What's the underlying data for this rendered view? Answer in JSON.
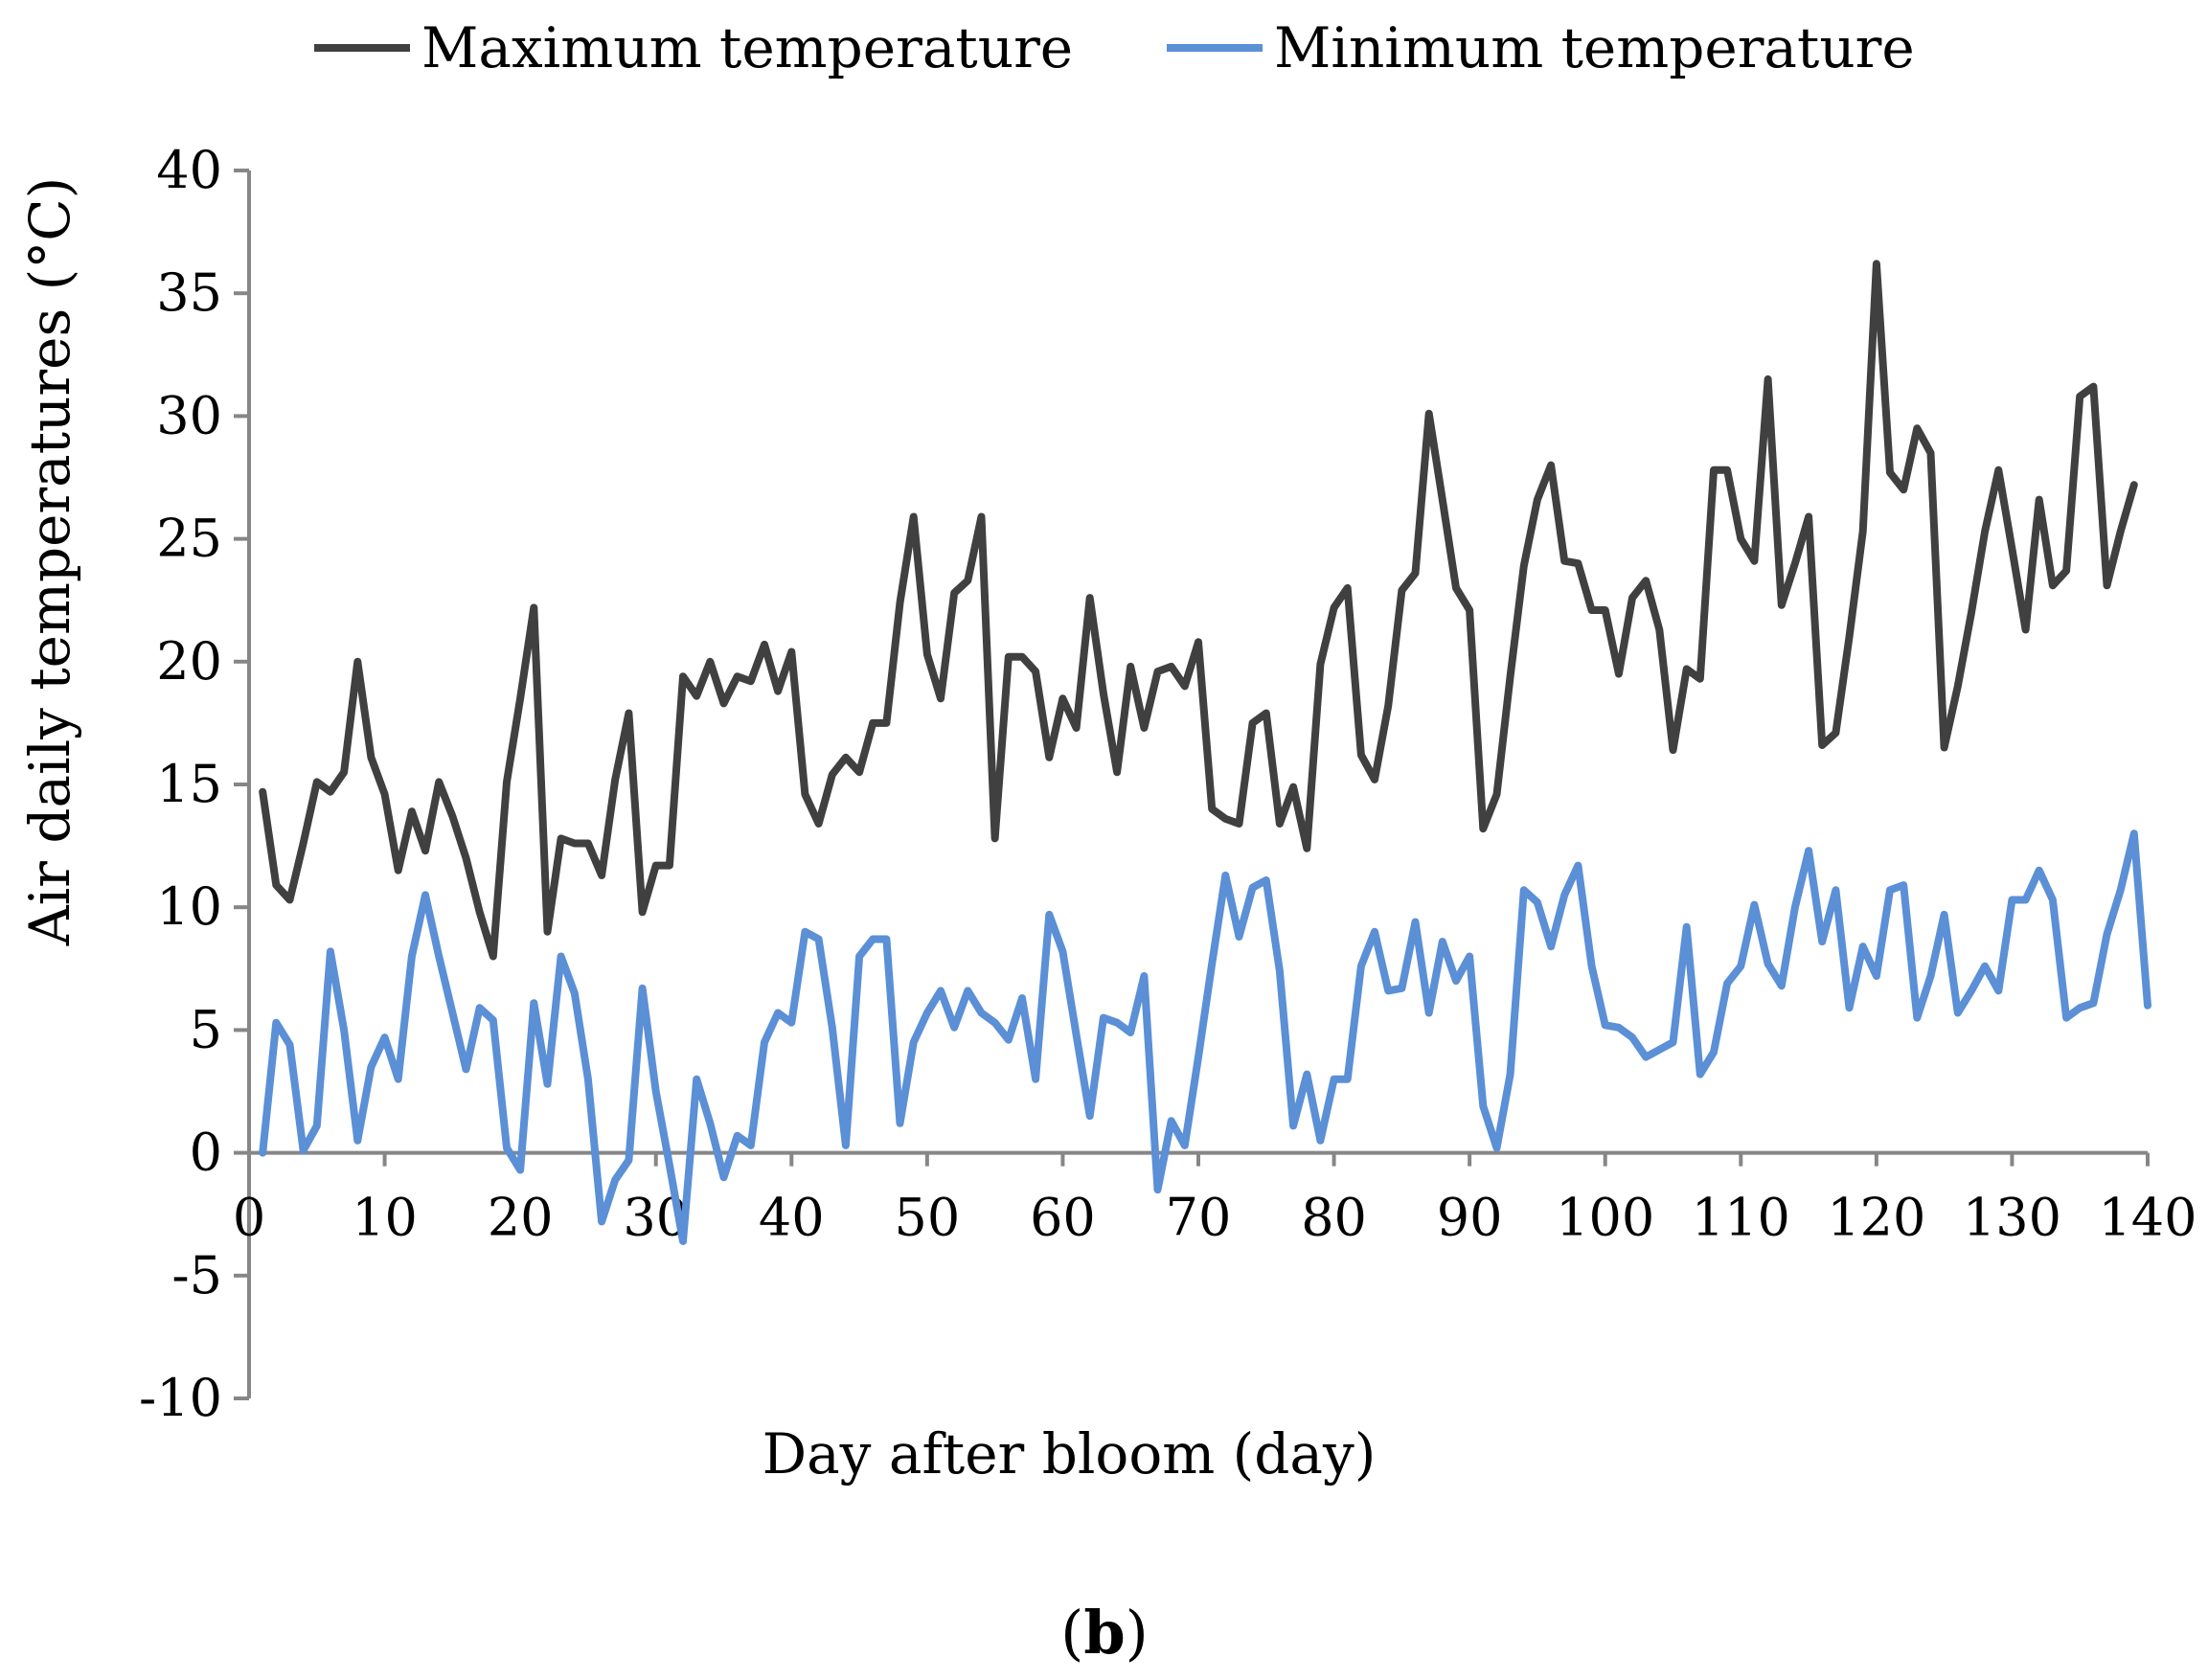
{
  "chart_data": {
    "type": "line",
    "title": "",
    "xlabel": "Day after bloom (day)",
    "ylabel": "Air daily temperatures (°C)",
    "xlim": [
      0,
      140
    ],
    "ylim": [
      -10,
      40
    ],
    "x_ticks": [
      "0",
      "10",
      "20",
      "30",
      "40",
      "50",
      "60",
      "70",
      "80",
      "90",
      "100",
      "110",
      "120",
      "130",
      "140"
    ],
    "y_ticks": [
      "40",
      "35",
      "30",
      "25",
      "20",
      "15",
      "10",
      "5",
      "0",
      "-5",
      "-10"
    ],
    "x_tick_values": [
      0,
      10,
      20,
      30,
      40,
      50,
      60,
      70,
      80,
      90,
      100,
      110,
      120,
      130,
      140
    ],
    "y_tick_values": [
      40,
      35,
      30,
      25,
      20,
      15,
      10,
      5,
      0,
      -5,
      -10
    ],
    "grid": false,
    "legend_position": "top",
    "series": [
      {
        "name": "Maximum temperature",
        "color": "#404040",
        "x": [
          1,
          2,
          3,
          4,
          5,
          6,
          7,
          8,
          9,
          10,
          11,
          12,
          13,
          14,
          15,
          16,
          17,
          18,
          19,
          20,
          21,
          22,
          23,
          24,
          25,
          26,
          27,
          28,
          29,
          30,
          31,
          32,
          33,
          34,
          35,
          36,
          37,
          38,
          39,
          40,
          41,
          42,
          43,
          44,
          45,
          46,
          47,
          48,
          49,
          50,
          51,
          52,
          53,
          54,
          55,
          56,
          57,
          58,
          59,
          60,
          61,
          62,
          63,
          64,
          65,
          66,
          67,
          68,
          69,
          70,
          71,
          72,
          73,
          74,
          75,
          76,
          77,
          78,
          79,
          80,
          81,
          82,
          83,
          84,
          85,
          86,
          87,
          88,
          89,
          90,
          91,
          92,
          93,
          94,
          95,
          96,
          97,
          98,
          99,
          100,
          101,
          102,
          103,
          104,
          105,
          106,
          107,
          108,
          109,
          110,
          111,
          112,
          113,
          114,
          115,
          116,
          117,
          118,
          119,
          120,
          121,
          122,
          123,
          124,
          125,
          126,
          127,
          128,
          129,
          130,
          131,
          132,
          133,
          134,
          135,
          136,
          137,
          138,
          139
        ],
        "values": [
          14.7,
          10.9,
          10.3,
          12.6,
          15.1,
          14.7,
          15.5,
          20.0,
          16.1,
          14.6,
          11.5,
          13.9,
          12.3,
          15.1,
          13.7,
          12.0,
          9.8,
          8.0,
          15.1,
          18.5,
          22.2,
          9.0,
          12.8,
          12.6,
          12.6,
          11.3,
          15.2,
          17.9,
          9.8,
          11.7,
          11.7,
          19.4,
          18.6,
          20.0,
          18.3,
          19.4,
          19.2,
          20.7,
          18.8,
          20.4,
          14.6,
          13.4,
          15.4,
          16.1,
          15.5,
          17.5,
          17.5,
          22.4,
          25.9,
          20.3,
          18.5,
          22.8,
          23.3,
          25.9,
          12.8,
          20.2,
          20.2,
          19.6,
          16.1,
          18.5,
          17.3,
          22.6,
          18.7,
          15.5,
          19.8,
          17.3,
          19.6,
          19.8,
          19.0,
          20.8,
          14.0,
          13.6,
          13.4,
          17.5,
          17.9,
          13.4,
          14.9,
          12.4,
          19.9,
          22.2,
          23.0,
          16.2,
          15.2,
          18.2,
          22.9,
          23.6,
          30.1,
          26.6,
          23.0,
          22.1,
          13.2,
          14.6,
          19.4,
          23.9,
          26.6,
          28.0,
          24.1,
          24.0,
          22.1,
          22.1,
          19.5,
          22.6,
          23.3,
          21.3,
          16.4,
          19.7,
          19.3,
          27.8,
          27.8,
          25.0,
          24.1,
          31.5,
          22.3,
          24.0,
          25.9,
          16.6,
          17.1,
          21.0,
          25.3,
          36.2,
          27.7,
          27.0,
          29.5,
          28.5,
          16.5,
          19.0,
          22.0,
          25.3,
          27.8,
          24.6,
          21.3,
          26.6,
          23.1,
          23.7,
          30.8,
          31.2,
          23.1,
          25.3,
          27.2
        ]
      },
      {
        "name": "Minimum temperature",
        "color": "#5b8fd6",
        "x": [
          1,
          2,
          3,
          4,
          5,
          6,
          7,
          8,
          9,
          10,
          11,
          12,
          13,
          14,
          15,
          16,
          17,
          18,
          19,
          20,
          21,
          22,
          23,
          24,
          25,
          26,
          27,
          28,
          29,
          30,
          31,
          32,
          33,
          34,
          35,
          36,
          37,
          38,
          39,
          40,
          41,
          42,
          43,
          44,
          45,
          46,
          47,
          48,
          49,
          50,
          51,
          52,
          53,
          54,
          55,
          56,
          57,
          58,
          59,
          60,
          61,
          62,
          63,
          64,
          65,
          66,
          67,
          68,
          69,
          70,
          71,
          72,
          73,
          74,
          75,
          76,
          77,
          78,
          79,
          80,
          81,
          82,
          83,
          84,
          85,
          86,
          87,
          88,
          89,
          90,
          91,
          92,
          93,
          94,
          95,
          96,
          97,
          98,
          99,
          100,
          101,
          102,
          103,
          104,
          105,
          106,
          107,
          108,
          109,
          110,
          111,
          112,
          113,
          114,
          115,
          116,
          117,
          118,
          119,
          120,
          121,
          122,
          123,
          124,
          125,
          126,
          127,
          128,
          129,
          130,
          131,
          132,
          133,
          134,
          135,
          136,
          137,
          138,
          139,
          140
        ],
        "values": [
          0.0,
          5.3,
          4.4,
          0.1,
          1.1,
          8.2,
          5.0,
          0.5,
          3.5,
          4.7,
          3.0,
          8.0,
          10.5,
          8.0,
          5.7,
          3.4,
          5.9,
          5.4,
          0.2,
          -0.7,
          6.1,
          2.8,
          8.0,
          6.5,
          3.0,
          -2.8,
          -1.1,
          -0.3,
          6.7,
          2.5,
          -0.5,
          -3.6,
          3.0,
          1.2,
          -1.0,
          0.7,
          0.3,
          4.5,
          5.7,
          5.3,
          9.0,
          8.7,
          5.1,
          0.3,
          8.0,
          8.7,
          8.7,
          1.2,
          4.5,
          5.7,
          6.6,
          5.1,
          6.6,
          5.7,
          5.3,
          4.6,
          6.3,
          3.0,
          9.7,
          8.2,
          4.8,
          1.5,
          5.5,
          5.3,
          4.9,
          7.2,
          -1.5,
          1.3,
          0.3,
          3.9,
          7.7,
          11.3,
          8.8,
          10.8,
          11.1,
          7.4,
          1.1,
          3.2,
          0.5,
          3.0,
          3.0,
          7.6,
          9.0,
          6.6,
          6.7,
          9.4,
          5.7,
          8.6,
          7.0,
          8.0,
          1.9,
          0.2,
          3.2,
          10.7,
          10.2,
          8.4,
          10.5,
          11.7,
          7.6,
          5.2,
          5.1,
          4.7,
          3.9,
          4.2,
          4.5,
          9.2,
          3.2,
          4.1,
          6.9,
          7.6,
          10.1,
          7.7,
          6.8,
          10.0,
          12.3,
          8.6,
          10.7,
          5.9,
          8.4,
          7.2,
          10.7,
          10.9,
          5.5,
          7.2,
          9.7,
          5.7,
          6.6,
          7.6,
          6.6,
          10.3,
          10.3,
          11.5,
          10.3,
          5.5,
          5.9,
          6.1,
          8.9,
          10.7,
          13.0,
          6.0
        ]
      }
    ]
  },
  "panel_label": {
    "open": "(",
    "letter": "b",
    "close": ")"
  }
}
